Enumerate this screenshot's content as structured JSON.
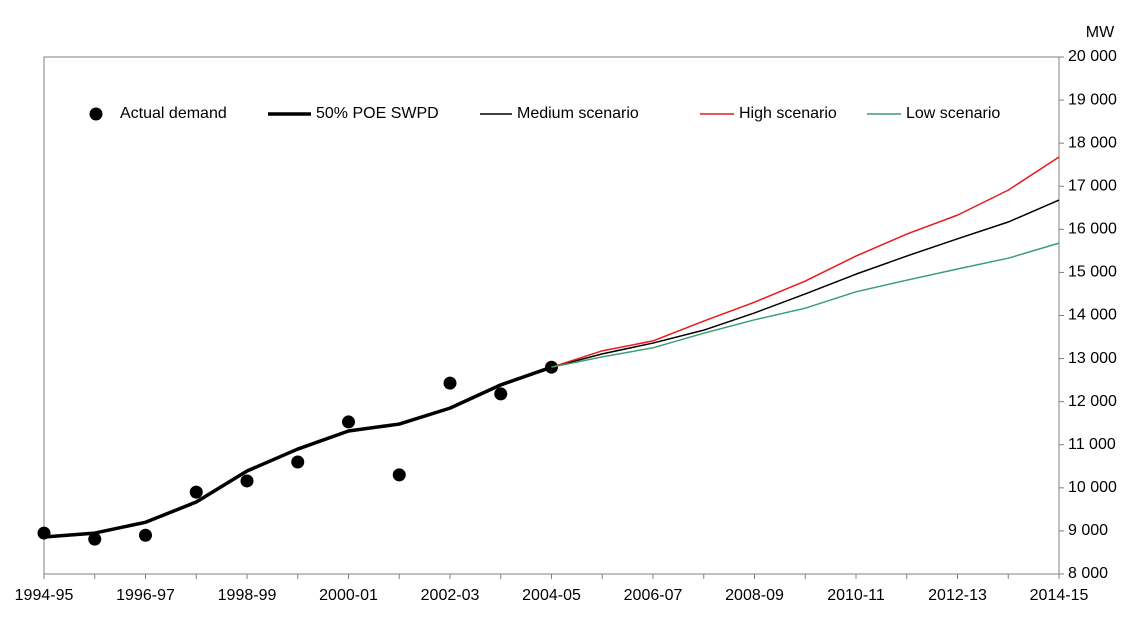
{
  "chart_data": {
    "type": "line",
    "y_axis_unit": "MW",
    "y_axis_side": "right",
    "grid": false,
    "legend": "top",
    "categories": [
      "1994-95",
      null,
      "1996-97",
      null,
      "1998-99",
      null,
      "2000-01",
      null,
      "2002-03",
      null,
      "2004-05",
      null,
      "2006-07",
      null,
      "2008-09",
      null,
      "2010-11",
      null,
      "2012-13",
      null,
      "2014-15"
    ],
    "series": [
      {
        "name": "Actual demand",
        "color": "#000000",
        "style": "markers",
        "values": [
          8950,
          8810,
          8900,
          9900,
          10160,
          10600,
          11530,
          10300,
          12430,
          12180,
          12800,
          null,
          null,
          null,
          null,
          null,
          null,
          null,
          null,
          null,
          null
        ]
      },
      {
        "name": "50% POE SWPD",
        "color": "#000000",
        "style": "thick-line",
        "values": [
          8860,
          8950,
          9200,
          9670,
          10390,
          10900,
          11320,
          11480,
          11850,
          12390,
          12800,
          null,
          null,
          null,
          null,
          null,
          null,
          null,
          null,
          null,
          null
        ]
      },
      {
        "name": "Medium scenario",
        "color": "#000000",
        "style": "line",
        "values": [
          null,
          null,
          null,
          null,
          null,
          null,
          null,
          null,
          null,
          null,
          12800,
          13110,
          13360,
          13660,
          14060,
          14500,
          14960,
          15380,
          15780,
          16170,
          16680
        ]
      },
      {
        "name": "High scenario",
        "color": "#e8191b",
        "style": "line",
        "values": [
          null,
          null,
          null,
          null,
          null,
          null,
          null,
          null,
          null,
          null,
          12800,
          13180,
          13410,
          13870,
          14310,
          14800,
          15380,
          15890,
          16330,
          16910,
          17680
        ]
      },
      {
        "name": "Low scenario",
        "color": "#3a9e6f",
        "style": "line",
        "values": [
          null,
          null,
          null,
          null,
          null,
          null,
          null,
          null,
          null,
          null,
          12800,
          13040,
          13250,
          13590,
          13900,
          14170,
          14550,
          14820,
          15080,
          15330,
          15680
        ]
      }
    ],
    "ylim": [
      8000,
      20000
    ],
    "yticks": [
      {
        "value": 8000,
        "label": "8 000"
      },
      {
        "value": 9000,
        "label": "9 000"
      },
      {
        "value": 10000,
        "label": "10 000"
      },
      {
        "value": 11000,
        "label": "11 000"
      },
      {
        "value": 12000,
        "label": "12 000"
      },
      {
        "value": 13000,
        "label": "13 000"
      },
      {
        "value": 14000,
        "label": "14 000"
      },
      {
        "value": 15000,
        "label": "15 000"
      },
      {
        "value": 16000,
        "label": "16 000"
      },
      {
        "value": 17000,
        "label": "17 000"
      },
      {
        "value": 18000,
        "label": "18 000"
      },
      {
        "value": 19000,
        "label": "19 000"
      },
      {
        "value": 20000,
        "label": "20 000"
      }
    ]
  }
}
